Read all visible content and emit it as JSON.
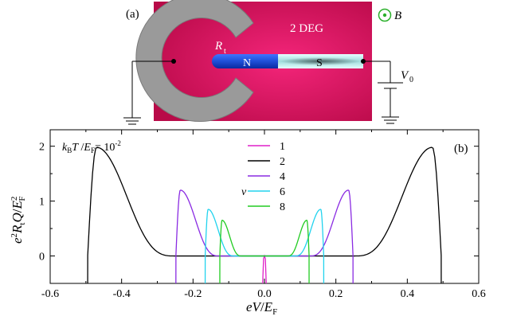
{
  "panel_a": {
    "label": "(a)",
    "region_label": "2 DEG",
    "resistor_label": "R",
    "resistor_sub": "t",
    "n_label": "N",
    "s_label": "S",
    "field_label": "B",
    "voltage_label": "V",
    "voltage_sub": "0",
    "colors": {
      "deg_center": "#f4257a",
      "deg_edge": "#b80a48",
      "n_wire": "#1e4fd8",
      "s_wire": "#bff0f0",
      "field": "#2bb02b"
    }
  },
  "chart_data": {
    "type": "line",
    "panel_label": "(b)",
    "annotation": "k_B T / E_F = 10^-2",
    "legend_title": "ν",
    "xlabel": "eV/E_F",
    "ylabel": "e^2 R_t Q / E_F^2",
    "xlim": [
      -0.6,
      0.6
    ],
    "ylim": [
      -0.5,
      2.3
    ],
    "xticks": [
      -0.6,
      -0.4,
      -0.2,
      0.0,
      0.2,
      0.4,
      0.6
    ],
    "xtick_labels": [
      "-0.6",
      "-0.4",
      "-0.2",
      "0.0",
      "0.2",
      "0.4",
      "0.6"
    ],
    "yticks": [
      0,
      1,
      2
    ],
    "ytick_labels": [
      "0",
      "1",
      "2"
    ],
    "grid": false,
    "legend_position": "top-center",
    "series": [
      {
        "name": "1",
        "color": "#e020c8",
        "edge": 0.005,
        "peak": 0.0,
        "floor": -0.5
      },
      {
        "name": "2",
        "color": "#000000",
        "edge": 0.495,
        "peak": 1.98,
        "floor": -0.5
      },
      {
        "name": "4",
        "color": "#8a2be2",
        "edge": 0.248,
        "peak": 1.2,
        "floor": -0.5
      },
      {
        "name": "6",
        "color": "#22d3ee",
        "edge": 0.166,
        "peak": 0.85,
        "floor": -0.5
      },
      {
        "name": "8",
        "color": "#22cc22",
        "edge": 0.125,
        "peak": 0.65,
        "floor": -0.5
      }
    ]
  }
}
